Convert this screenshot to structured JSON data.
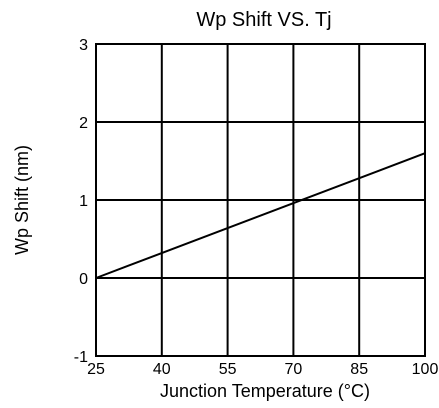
{
  "chart_data": {
    "type": "line",
    "title": "Wp Shift VS. Tj",
    "xlabel": "Junction Temperature (°C)",
    "ylabel": "Wp Shift (nm)",
    "xlim": [
      25,
      100
    ],
    "ylim": [
      -1,
      3
    ],
    "x_ticks": [
      25,
      40,
      55,
      70,
      85,
      100
    ],
    "y_ticks": [
      -1,
      0,
      1,
      2,
      3
    ],
    "x_tick_labels": [
      "25",
      "40",
      "55",
      "70",
      "85",
      "100"
    ],
    "y_tick_labels": [
      "-1",
      "0",
      "1",
      "2",
      "3"
    ],
    "grid": true,
    "series": [
      {
        "x": [
          25,
          100
        ],
        "y": [
          0,
          1.6
        ]
      }
    ]
  }
}
